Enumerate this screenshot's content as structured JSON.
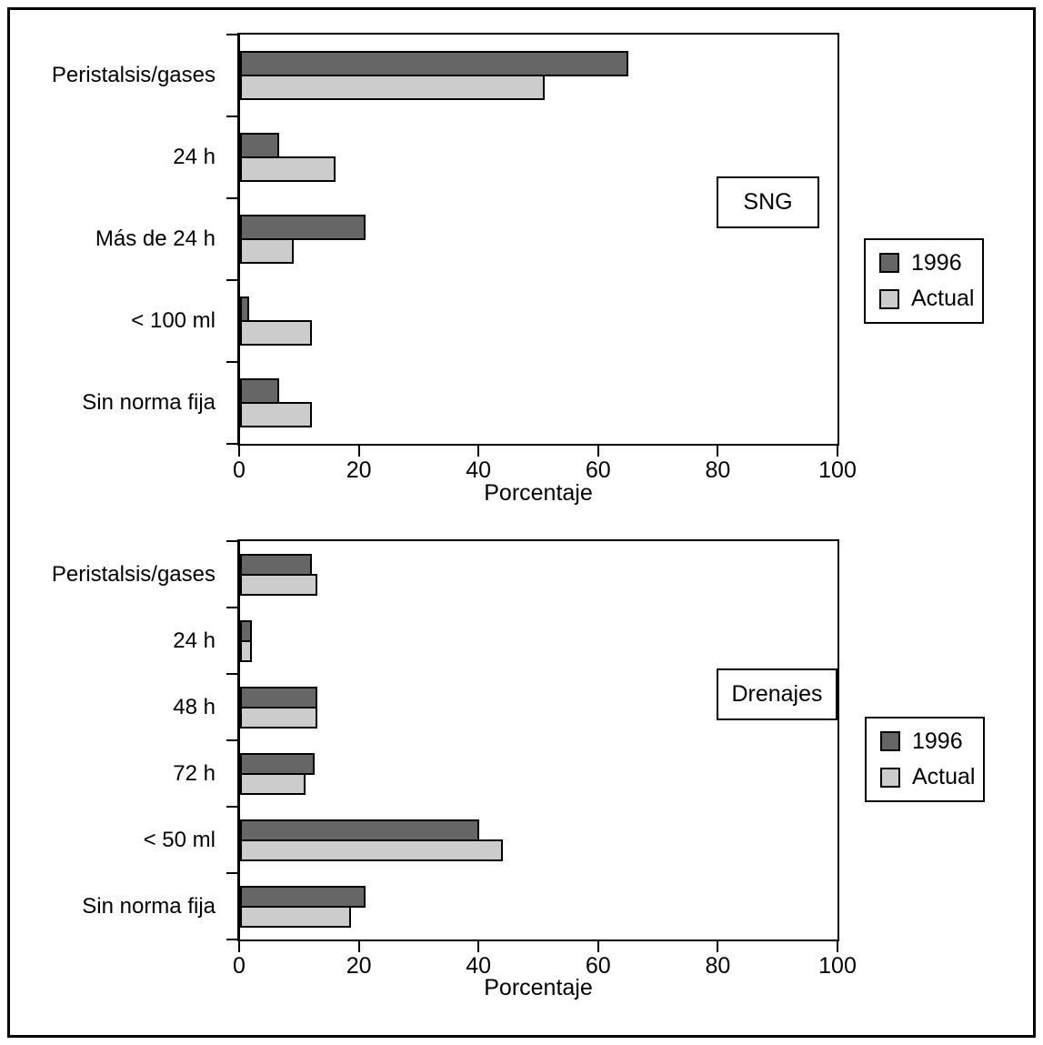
{
  "figure": {
    "background": "#ffffff",
    "border_color": "#000000",
    "series_colors": {
      "1996": "#666666",
      "Actual": "#cccccc"
    }
  },
  "chart_data": [
    {
      "type": "bar",
      "orientation": "horizontal",
      "title_box": "SNG",
      "categories": [
        "Peristalsis/gases",
        "24 h",
        "Más de 24 h",
        "< 100 ml",
        "Sin norma fija"
      ],
      "series": [
        {
          "name": "1996",
          "color": "#666666",
          "values": [
            65,
            6.5,
            21,
            1.5,
            6.5
          ]
        },
        {
          "name": "Actual",
          "color": "#cccccc",
          "values": [
            51,
            16,
            9,
            12,
            12
          ]
        }
      ],
      "xlabel": "Porcentaje",
      "xlim": [
        0,
        100
      ],
      "xticks": [
        0,
        20,
        40,
        60,
        80,
        100
      ],
      "grid": false,
      "legend_position": "right-outside"
    },
    {
      "type": "bar",
      "orientation": "horizontal",
      "title_box": "Drenajes",
      "categories": [
        "Peristalsis/gases",
        "24 h",
        "48 h",
        "72 h",
        "< 50 ml",
        "Sin norma fija"
      ],
      "series": [
        {
          "name": "1996",
          "color": "#666666",
          "values": [
            12,
            2,
            13,
            12.5,
            40,
            21
          ]
        },
        {
          "name": "Actual",
          "color": "#cccccc",
          "values": [
            13,
            2,
            13,
            11,
            44,
            18.5
          ]
        }
      ],
      "xlabel": "Porcentaje",
      "xlim": [
        0,
        100
      ],
      "xticks": [
        0,
        20,
        40,
        60,
        80,
        100
      ],
      "grid": false,
      "legend_position": "right-outside"
    }
  ]
}
